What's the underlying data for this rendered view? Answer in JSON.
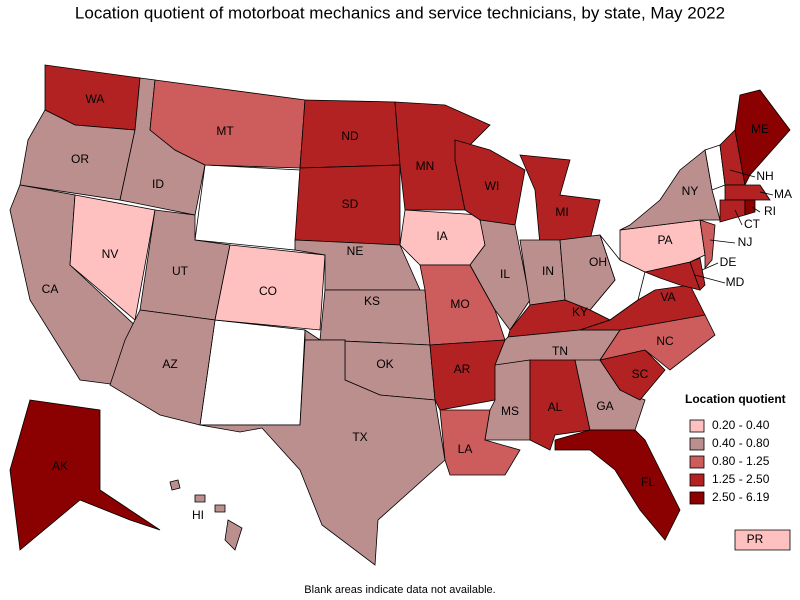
{
  "title": "Location quotient of motorboat mechanics and service technicians, by state, May 2022",
  "legend": {
    "title": "Location quotient",
    "bins": [
      {
        "label": "0.20 - 0.40",
        "color": "#ffc0c0"
      },
      {
        "label": "0.40 - 0.80",
        "color": "#bc8f8f"
      },
      {
        "label": "0.80 - 1.25",
        "color": "#cd5c5c"
      },
      {
        "label": "1.25 - 2.50",
        "color": "#b22222"
      },
      {
        "label": "2.50 - 6.19",
        "color": "#8b0000"
      }
    ]
  },
  "states": [
    {
      "label": "WA",
      "bin": 3
    },
    {
      "label": "OR",
      "bin": 1
    },
    {
      "label": "CA",
      "bin": 1
    },
    {
      "label": "NV",
      "bin": 0
    },
    {
      "label": "ID",
      "bin": 1
    },
    {
      "label": "MT",
      "bin": 2
    },
    {
      "label": "UT",
      "bin": 1
    },
    {
      "label": "CO",
      "bin": 0
    },
    {
      "label": "AZ",
      "bin": 1
    },
    {
      "label": "ND",
      "bin": 3
    },
    {
      "label": "SD",
      "bin": 3
    },
    {
      "label": "NE",
      "bin": 1
    },
    {
      "label": "KS",
      "bin": 1
    },
    {
      "label": "OK",
      "bin": 1
    },
    {
      "label": "TX",
      "bin": 1
    },
    {
      "label": "MN",
      "bin": 3
    },
    {
      "label": "IA",
      "bin": 0
    },
    {
      "label": "MO",
      "bin": 2
    },
    {
      "label": "AR",
      "bin": 3
    },
    {
      "label": "LA",
      "bin": 2
    },
    {
      "label": "WI",
      "bin": 3
    },
    {
      "label": "IL",
      "bin": 1
    },
    {
      "label": "MI",
      "bin": 3
    },
    {
      "label": "IN",
      "bin": 1
    },
    {
      "label": "OH",
      "bin": 1
    },
    {
      "label": "KY",
      "bin": 3
    },
    {
      "label": "TN",
      "bin": 1
    },
    {
      "label": "MS",
      "bin": 1
    },
    {
      "label": "AL",
      "bin": 3
    },
    {
      "label": "GA",
      "bin": 1
    },
    {
      "label": "FL",
      "bin": 4
    },
    {
      "label": "SC",
      "bin": 3
    },
    {
      "label": "NC",
      "bin": 2
    },
    {
      "label": "VA",
      "bin": 3
    },
    {
      "label": "MD",
      "bin": 3
    },
    {
      "label": "DE",
      "bin": 3
    },
    {
      "label": "PA",
      "bin": 0
    },
    {
      "label": "NJ",
      "bin": 2
    },
    {
      "label": "NY",
      "bin": 1
    },
    {
      "label": "NH",
      "bin": 3
    },
    {
      "label": "ME",
      "bin": 4
    },
    {
      "label": "MA",
      "bin": 3
    },
    {
      "label": "CT",
      "bin": 3
    },
    {
      "label": "RI",
      "bin": 4
    },
    {
      "label": "AK",
      "bin": 4
    },
    {
      "label": "HI",
      "bin": 1
    },
    {
      "label": "PR",
      "bin": 0
    }
  ],
  "note": "Blank areas indicate data not available."
}
